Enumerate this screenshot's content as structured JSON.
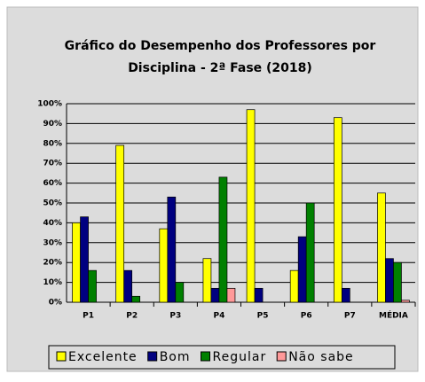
{
  "chart_data": {
    "type": "bar",
    "title": [
      "Gráfico do Desempenho dos Professores por",
      "Disciplina - 2ª Fase (2018)"
    ],
    "categories": [
      "P1",
      "P2",
      "P3",
      "P4",
      "P5",
      "P6",
      "P7",
      "MÉDIA"
    ],
    "series": [
      {
        "name": "Excelente",
        "color": "#ffff00",
        "values": [
          40,
          79,
          37,
          22,
          97,
          16,
          93,
          55
        ]
      },
      {
        "name": "Bom",
        "color": "#000080",
        "values": [
          43,
          16,
          53,
          7,
          7,
          33,
          7,
          22
        ]
      },
      {
        "name": "Regular",
        "color": "#008000",
        "values": [
          16,
          3,
          10,
          63,
          0,
          50,
          0,
          20
        ]
      },
      {
        "name": "Não sabe",
        "color": "#ff9999",
        "values": [
          0,
          0,
          0,
          7,
          0,
          0,
          0,
          1
        ]
      }
    ],
    "ylim": [
      0,
      100
    ],
    "yticks": [
      {
        "value": 0,
        "label": "0%"
      },
      {
        "value": 10,
        "label": "10%"
      },
      {
        "value": 20,
        "label": "20%"
      },
      {
        "value": 30,
        "label": "30%"
      },
      {
        "value": 40,
        "label": "40%"
      },
      {
        "value": 50,
        "label": "50%"
      },
      {
        "value": 60,
        "label": "60%"
      },
      {
        "value": 70,
        "label": "70%"
      },
      {
        "value": 80,
        "label": "80%"
      },
      {
        "value": 90,
        "label": "90%"
      },
      {
        "value": 100,
        "label": "100%"
      }
    ],
    "grid": true,
    "legend": "bottom"
  }
}
